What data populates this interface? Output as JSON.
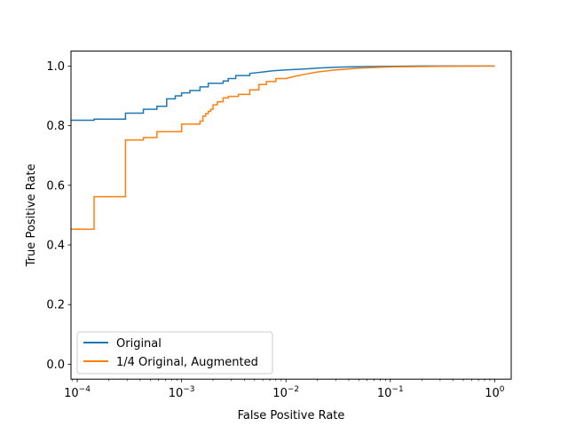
{
  "chart_data": {
    "type": "line",
    "xlabel": "False Positive Rate",
    "ylabel": "True Positive Rate",
    "xscale": "log",
    "xlim": [
      8.71e-05,
      1.44
    ],
    "ylim": [
      -0.05,
      1.05
    ],
    "x_ticks": [
      {
        "value": 0.0001,
        "base": "10",
        "exp": "−4"
      },
      {
        "value": 0.001,
        "base": "10",
        "exp": "−3"
      },
      {
        "value": 0.01,
        "base": "10",
        "exp": "−2"
      },
      {
        "value": 0.1,
        "base": "10",
        "exp": "−1"
      },
      {
        "value": 1,
        "base": "10",
        "exp": "0"
      }
    ],
    "y_ticks": [
      "0.0",
      "0.2",
      "0.4",
      "0.6",
      "0.8",
      "1.0"
    ],
    "grid": false,
    "legend_position": "lower-left",
    "series": [
      {
        "name": "Original",
        "color": "#1f77b4",
        "x": [
          8.71e-05,
          0.000145,
          0.000145,
          0.00029,
          0.00029,
          0.00043,
          0.00043,
          0.00058,
          0.00058,
          0.00072,
          0.00072,
          0.00087,
          0.00087,
          0.001,
          0.001,
          0.0012,
          0.0012,
          0.0015,
          0.0015,
          0.0018,
          0.0018,
          0.0025,
          0.0025,
          0.0028,
          0.0028,
          0.0033,
          0.0033,
          0.0045,
          0.0045,
          0.006,
          0.0075,
          0.01,
          0.015,
          0.02,
          0.03,
          0.05,
          0.1,
          0.2,
          1.0
        ],
        "y": [
          0.818,
          0.818,
          0.822,
          0.822,
          0.842,
          0.842,
          0.855,
          0.855,
          0.865,
          0.865,
          0.89,
          0.89,
          0.9,
          0.9,
          0.91,
          0.91,
          0.918,
          0.918,
          0.93,
          0.93,
          0.942,
          0.942,
          0.95,
          0.95,
          0.958,
          0.958,
          0.968,
          0.968,
          0.975,
          0.98,
          0.984,
          0.987,
          0.99,
          0.993,
          0.996,
          0.998,
          0.999,
          1.0,
          1.0
        ]
      },
      {
        "name": "1/4 Original, Augmented",
        "color": "#ff7f0e",
        "x": [
          8.71e-05,
          0.000145,
          0.000145,
          0.00029,
          0.00029,
          0.00043,
          0.00043,
          0.00058,
          0.00058,
          0.001,
          0.001,
          0.0015,
          0.0015,
          0.0016,
          0.0016,
          0.0017,
          0.0017,
          0.0018,
          0.0018,
          0.0019,
          0.0019,
          0.002,
          0.002,
          0.0022,
          0.0022,
          0.0025,
          0.0025,
          0.0028,
          0.0028,
          0.0035,
          0.0035,
          0.0045,
          0.0045,
          0.0055,
          0.0055,
          0.0065,
          0.0065,
          0.008,
          0.008,
          0.01,
          0.012,
          0.015,
          0.02,
          0.03,
          0.05,
          0.1,
          0.3,
          1.0
        ],
        "y": [
          0.453,
          0.453,
          0.562,
          0.562,
          0.752,
          0.752,
          0.76,
          0.76,
          0.78,
          0.78,
          0.805,
          0.805,
          0.815,
          0.815,
          0.832,
          0.832,
          0.84,
          0.84,
          0.848,
          0.848,
          0.855,
          0.855,
          0.87,
          0.87,
          0.88,
          0.88,
          0.893,
          0.893,
          0.898,
          0.898,
          0.905,
          0.905,
          0.92,
          0.92,
          0.938,
          0.938,
          0.948,
          0.948,
          0.958,
          0.958,
          0.965,
          0.972,
          0.98,
          0.987,
          0.993,
          0.997,
          0.999,
          1.0
        ]
      }
    ]
  }
}
